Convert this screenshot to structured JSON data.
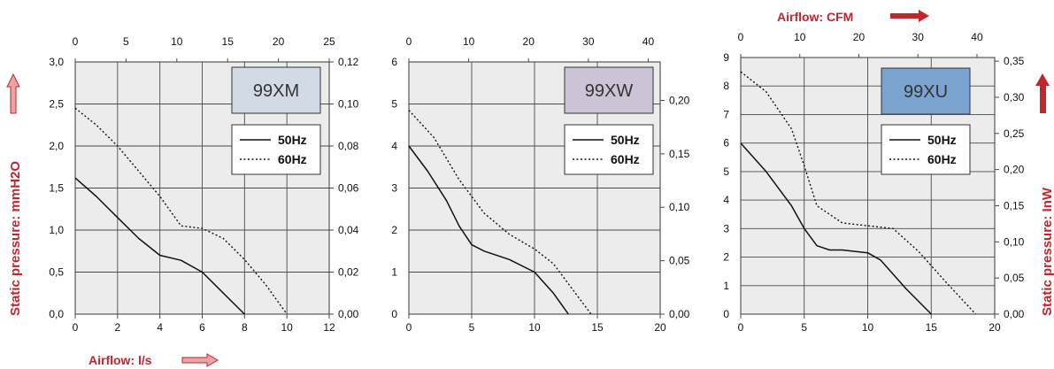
{
  "colors": {
    "plot_bg": "#ececec",
    "grid": "#4a4a4a",
    "curve": "#111111",
    "accent_red": "#c0272d",
    "arrow_outline_fill": "#e8a5a5"
  },
  "labels": {
    "airflow_ls": "Airflow: l/s",
    "airflow_cfm": "Airflow: CFM",
    "static_pressure_mmh2o": "Static pressure: mmH2O",
    "static_pressure_inw": "Static pressure: InW"
  },
  "chart_data": [
    {
      "type": "line",
      "title": "99XM",
      "title_bg": "#d2dbe5",
      "x_bottom": {
        "min": 0,
        "max": 12,
        "ticks": [
          "0",
          "2",
          "4",
          "6",
          "8",
          "10",
          "12"
        ]
      },
      "x_top": {
        "min": 0,
        "max": 25,
        "ticks": [
          "0",
          "5",
          "10",
          "15",
          "20",
          "25"
        ]
      },
      "y_left": {
        "min": 0,
        "max": 3,
        "ticks": [
          "0,0",
          "0,5",
          "1,0",
          "1,5",
          "2,0",
          "2,5",
          "3,0"
        ]
      },
      "y_right": {
        "min": 0,
        "max": 0.12,
        "ticks": [
          "0,00",
          "0,02",
          "0,04",
          "0,06",
          "0,08",
          "0,10",
          "0,12"
        ]
      },
      "legend": [
        "50Hz",
        "60Hz"
      ],
      "series": [
        {
          "name": "50Hz",
          "style": "solid",
          "x": [
            0,
            1,
            2,
            3,
            4,
            5,
            6,
            7,
            8
          ],
          "y": [
            1.62,
            1.4,
            1.15,
            0.9,
            0.7,
            0.64,
            0.5,
            0.25,
            0.0
          ]
        },
        {
          "name": "60Hz",
          "style": "dotted",
          "x": [
            0,
            1,
            2,
            3,
            4,
            5,
            6,
            7,
            8,
            9,
            10
          ],
          "y": [
            2.45,
            2.25,
            2.0,
            1.7,
            1.4,
            1.05,
            1.02,
            0.9,
            0.65,
            0.35,
            0.0
          ]
        }
      ]
    },
    {
      "type": "line",
      "title": "99XW",
      "title_bg": "#cdc3d6",
      "x_bottom": {
        "min": 0,
        "max": 20,
        "ticks": [
          "0",
          "5",
          "10",
          "15",
          "20"
        ]
      },
      "x_top": {
        "min": 0,
        "max": 42,
        "ticks": [
          "0",
          "10",
          "20",
          "30",
          "40"
        ]
      },
      "y_left": {
        "min": 0,
        "max": 6,
        "ticks": [
          "0",
          "1",
          "2",
          "3",
          "4",
          "5",
          "6"
        ]
      },
      "y_right": {
        "min": 0,
        "max": 0.236,
        "ticks": [
          "0,00",
          "0,05",
          "0,10",
          "0,15",
          "0,20"
        ]
      },
      "legend": [
        "50Hz",
        "60Hz"
      ],
      "series": [
        {
          "name": "50Hz",
          "style": "solid",
          "x": [
            0,
            1.5,
            3,
            4,
            5,
            6,
            8,
            10,
            11.5,
            12.7
          ],
          "y": [
            4.0,
            3.4,
            2.7,
            2.1,
            1.65,
            1.5,
            1.3,
            1.0,
            0.5,
            0.0
          ]
        },
        {
          "name": "60Hz",
          "style": "dotted",
          "x": [
            0,
            2,
            4,
            6,
            8,
            10,
            11.5,
            13,
            14.5
          ],
          "y": [
            4.85,
            4.2,
            3.2,
            2.4,
            1.9,
            1.55,
            1.2,
            0.6,
            0.0
          ]
        }
      ]
    },
    {
      "type": "line",
      "title": "99XU",
      "title_bg": "#7ba3cf",
      "x_bottom": {
        "min": 0,
        "max": 20,
        "ticks": [
          "0",
          "5",
          "10",
          "15",
          "20"
        ]
      },
      "x_top": {
        "min": 0,
        "max": 43,
        "ticks": [
          "0",
          "10",
          "20",
          "30",
          "40"
        ]
      },
      "y_left": {
        "min": 0,
        "max": 9,
        "ticks": [
          "0",
          "1",
          "2",
          "3",
          "4",
          "5",
          "6",
          "7",
          "8",
          "9"
        ]
      },
      "y_right": {
        "min": 0,
        "max": 0.355,
        "ticks": [
          "0,00",
          "0,05",
          "0,10",
          "0,15",
          "0,20",
          "0,25",
          "0,30",
          "0,35"
        ]
      },
      "legend": [
        "50Hz",
        "60Hz"
      ],
      "series": [
        {
          "name": "50Hz",
          "style": "solid",
          "x": [
            0,
            2,
            4,
            5,
            6,
            7,
            8,
            10,
            11,
            13,
            15
          ],
          "y": [
            6.0,
            5.0,
            3.8,
            3.0,
            2.4,
            2.25,
            2.25,
            2.15,
            1.9,
            0.9,
            0.0
          ]
        },
        {
          "name": "60Hz",
          "style": "dotted",
          "x": [
            0,
            2,
            4,
            5,
            6,
            8,
            11,
            12,
            14,
            16,
            18.5
          ],
          "y": [
            8.5,
            7.8,
            6.5,
            5.2,
            3.8,
            3.2,
            3.05,
            3.0,
            2.2,
            1.2,
            0.0
          ]
        }
      ]
    }
  ]
}
